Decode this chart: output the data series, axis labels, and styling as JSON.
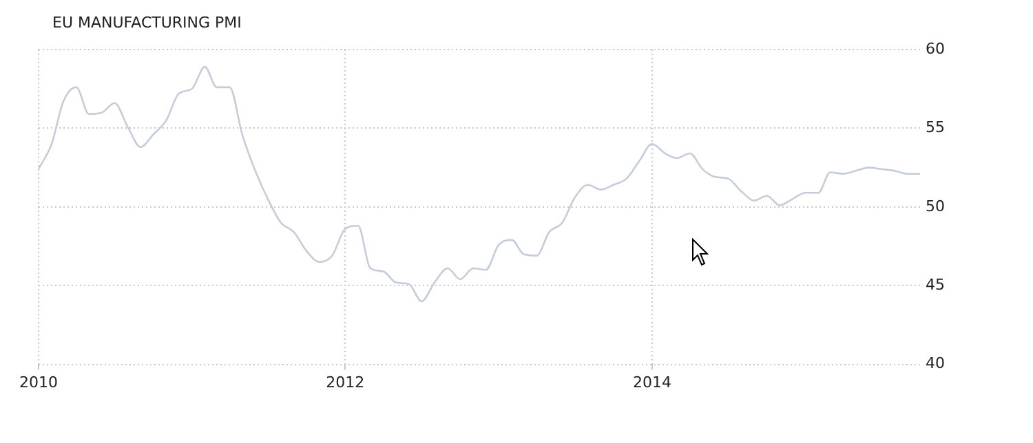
{
  "chart_data": {
    "type": "line",
    "title": "EU MANUFACTURING PMI",
    "x": [
      "2010-01",
      "2010-02",
      "2010-03",
      "2010-04",
      "2010-05",
      "2010-06",
      "2010-07",
      "2010-08",
      "2010-09",
      "2010-10",
      "2010-11",
      "2010-12",
      "2011-01",
      "2011-02",
      "2011-03",
      "2011-04",
      "2011-05",
      "2011-06",
      "2011-07",
      "2011-08",
      "2011-09",
      "2011-10",
      "2011-11",
      "2011-12",
      "2012-01",
      "2012-02",
      "2012-03",
      "2012-04",
      "2012-05",
      "2012-06",
      "2012-07",
      "2012-08",
      "2012-09",
      "2012-10",
      "2012-11",
      "2012-12",
      "2013-01",
      "2013-02",
      "2013-03",
      "2013-04",
      "2013-05",
      "2013-06",
      "2013-07",
      "2013-08",
      "2013-09",
      "2013-10",
      "2013-11",
      "2013-12",
      "2014-01",
      "2014-02",
      "2014-03",
      "2014-04",
      "2014-05",
      "2014-06",
      "2014-07",
      "2014-08",
      "2014-09",
      "2014-10",
      "2014-11",
      "2014-12",
      "2015-01",
      "2015-02",
      "2015-03",
      "2015-04",
      "2015-05",
      "2015-06",
      "2015-07",
      "2015-08",
      "2015-09",
      "2015-10"
    ],
    "series": [
      {
        "color": "#c5ccda",
        "values": [
          52.4,
          54.0,
          56.7,
          57.6,
          55.9,
          56.0,
          56.6,
          55.1,
          53.8,
          54.6,
          55.5,
          57.2,
          57.5,
          58.9,
          57.6,
          57.6,
          54.6,
          52.3,
          50.5,
          49.0,
          48.4,
          47.2,
          46.5,
          46.9,
          48.6,
          48.8,
          46.1,
          45.9,
          45.2,
          45.1,
          44.0,
          45.2,
          46.1,
          45.4,
          46.1,
          46.0,
          47.6,
          47.9,
          47.0,
          46.9,
          48.4,
          49.0,
          50.6,
          51.4,
          51.1,
          51.4,
          51.8,
          52.9,
          54.0,
          53.4,
          53.1,
          53.4,
          52.4,
          51.9,
          51.8,
          51.0,
          50.4,
          50.7,
          50.1,
          50.5,
          50.9,
          50.9,
          52.2,
          52.1,
          52.3,
          52.5,
          52.4,
          52.3,
          52.1,
          52.1
        ]
      }
    ],
    "xlim": [
      "2010-01",
      "2015-10"
    ],
    "xticks": [
      "2010",
      "2012",
      "2014"
    ],
    "ylim": [
      40,
      60
    ],
    "yticks": [
      40,
      45,
      50,
      55,
      60
    ],
    "grid": true,
    "legend": false,
    "marker": "none",
    "line_style": "solid"
  }
}
